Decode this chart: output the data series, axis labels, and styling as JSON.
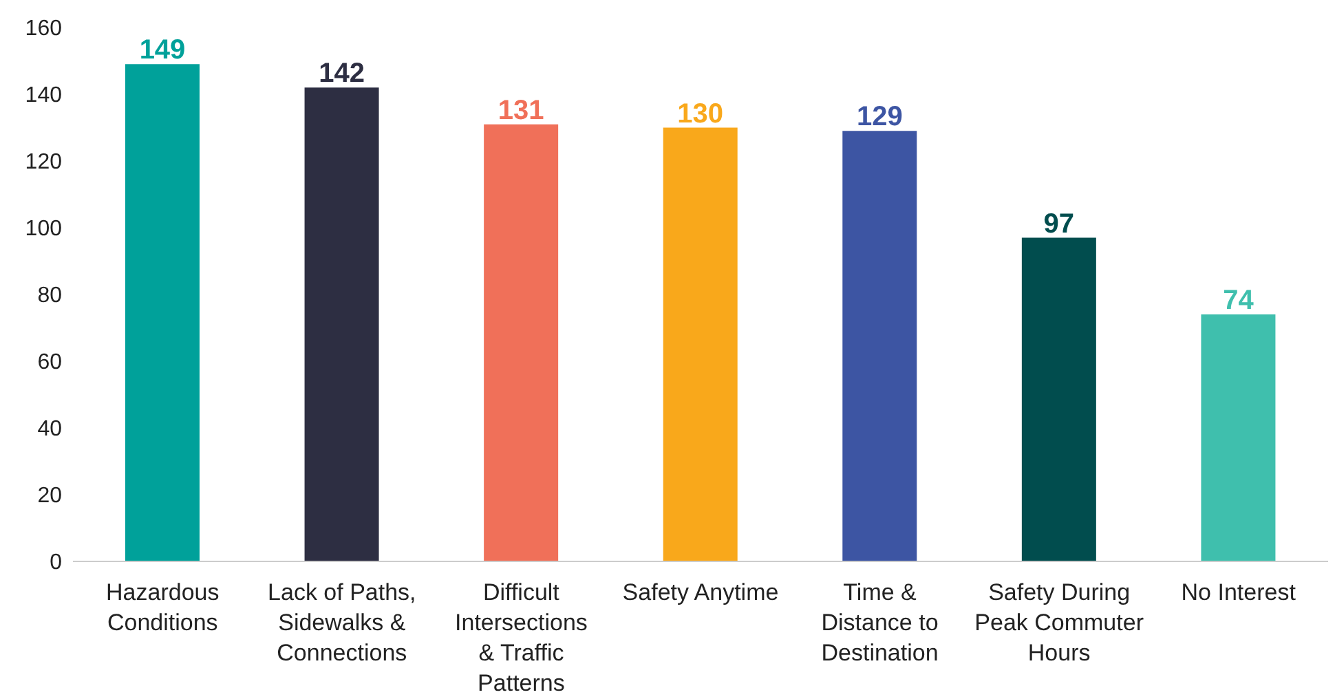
{
  "chart_data": {
    "type": "bar",
    "categories": [
      "Hazardous Conditions",
      "Lack of Paths, Sidewalks & Connections",
      "Difficult Intersections & Traffic Patterns",
      "Safety Anytime",
      "Time & Distance to Destination",
      "Safety During Peak Commuter Hours",
      "No Interest"
    ],
    "values": [
      149,
      142,
      131,
      130,
      129,
      97,
      74
    ],
    "colors": [
      "#00a19a",
      "#2d2e42",
      "#f07059",
      "#f9a81b",
      "#3d55a3",
      "#014d4e",
      "#3fbfad"
    ],
    "ylim": [
      0,
      160
    ],
    "yticks": [
      0,
      20,
      40,
      60,
      80,
      100,
      120,
      140,
      160
    ],
    "grid": false,
    "legend": false,
    "data_labels": true
  }
}
